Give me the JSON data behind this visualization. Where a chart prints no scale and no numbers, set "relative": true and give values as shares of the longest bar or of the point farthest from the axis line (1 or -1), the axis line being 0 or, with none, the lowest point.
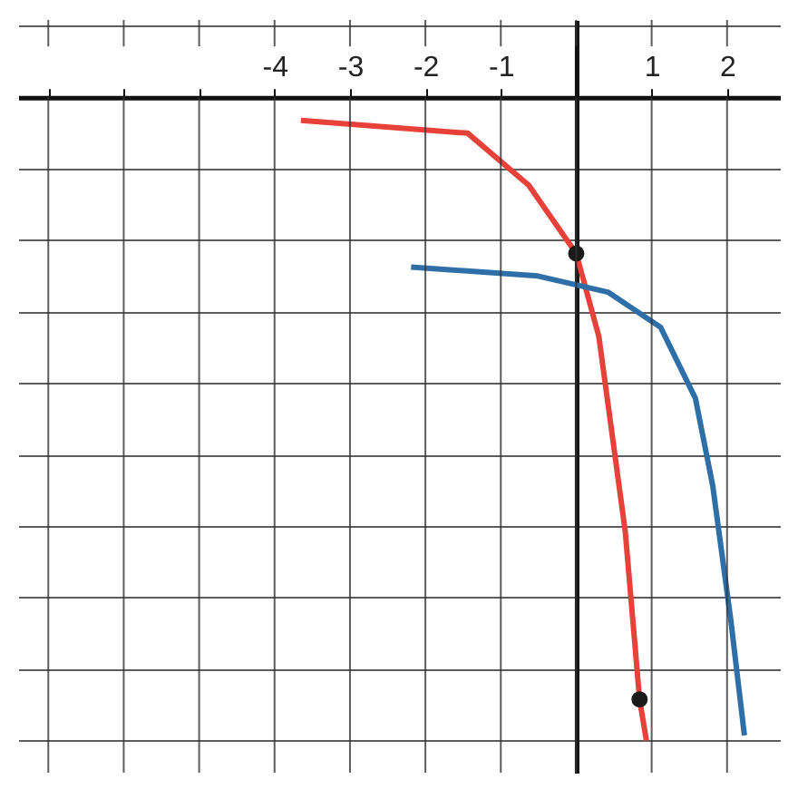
{
  "chart_data": {
    "type": "line",
    "relative": true,
    "grid": true,
    "marker": "none",
    "xlim": [
      -7.4,
      2.7
    ],
    "xticks": [
      {
        "value": -7,
        "label": null
      },
      {
        "value": -6,
        "label": null
      },
      {
        "value": -5,
        "label": null
      },
      -4,
      -3,
      -2,
      -1,
      {
        "value": 0,
        "label": null
      },
      1,
      2
    ],
    "series": [
      {
        "color": "#e8413a",
        "x": [
          -3.65,
          -1.44,
          -0.63,
          0,
          0.3,
          0.65,
          0.84,
          0.93
        ],
        "values": [
          -0.036,
          -0.056,
          -0.137,
          -0.243,
          -0.372,
          -0.675,
          -0.936,
          -1
        ]
      },
      {
        "color": "#2f6fa8",
        "x": [
          -2.19,
          -0.51,
          0.42,
          1.12,
          1.58,
          1.81,
          2.05,
          2.23
        ],
        "values": [
          -0.264,
          -0.278,
          -0.303,
          -0.358,
          -0.468,
          -0.604,
          -0.813,
          -0.992
        ]
      },
      {
        "type": "scatter",
        "marker": "circle",
        "color": "#1a1a1a",
        "x": [
          0,
          0.84
        ],
        "values": [
          -0.243,
          -0.936
        ]
      }
    ]
  }
}
